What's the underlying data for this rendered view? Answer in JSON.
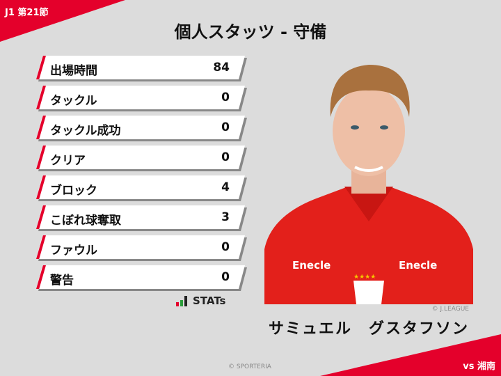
{
  "header": {
    "round": "J1 第21節",
    "title": "個人スタッツ - 守備"
  },
  "stats": [
    {
      "label": "出場時間",
      "value": "84"
    },
    {
      "label": "タックル",
      "value": "0"
    },
    {
      "label": "タックル成功",
      "value": "0"
    },
    {
      "label": "クリア",
      "value": "0"
    },
    {
      "label": "ブロック",
      "value": "4"
    },
    {
      "label": "こぼれ球奪取",
      "value": "3"
    },
    {
      "label": "ファウル",
      "value": "0"
    },
    {
      "label": "警告",
      "value": "0"
    }
  ],
  "logo": {
    "text": "STATs"
  },
  "player": {
    "name": "サミュエル　グスタフソン",
    "photo_credit": "© J.LEAGUE",
    "shirt_sponsor": "Enecle"
  },
  "footer": {
    "copyright": "© SPORTERIA",
    "opponent": "vs 湘南"
  },
  "colors": {
    "accent": "#e4002b",
    "background": "#dcdcdc"
  }
}
